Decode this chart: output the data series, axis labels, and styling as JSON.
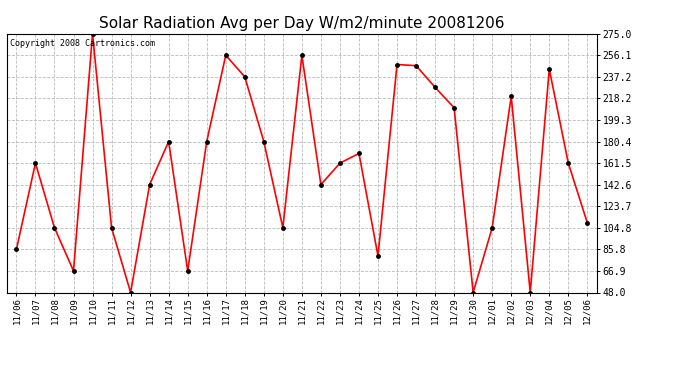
{
  "title": "Solar Radiation Avg per Day W/m2/minute 20081206",
  "copyright": "Copyright 2008 Cartronics.com",
  "x_labels": [
    "11/06",
    "11/07",
    "11/08",
    "11/09",
    "11/10",
    "11/11",
    "11/12",
    "11/13",
    "11/14",
    "11/15",
    "11/16",
    "11/17",
    "11/18",
    "11/19",
    "11/20",
    "11/21",
    "11/22",
    "11/23",
    "11/24",
    "11/25",
    "11/26",
    "11/27",
    "11/28",
    "11/29",
    "11/30",
    "12/01",
    "12/02",
    "12/03",
    "12/04",
    "12/05",
    "12/06"
  ],
  "y_values": [
    85.8,
    161.5,
    104.8,
    66.9,
    275.0,
    104.8,
    48.0,
    142.6,
    180.4,
    66.9,
    180.4,
    256.1,
    237.2,
    180.4,
    104.8,
    256.1,
    142.6,
    161.5,
    170.0,
    80.0,
    248.0,
    247.0,
    228.0,
    210.0,
    48.0,
    104.8,
    220.0,
    48.0,
    244.0,
    161.5,
    109.0
  ],
  "line_color": "#ff0000",
  "marker": "o",
  "marker_size": 2.5,
  "marker_color": "#000000",
  "background_color": "#ffffff",
  "plot_background": "#ffffff",
  "grid_color": "#bbbbbb",
  "title_fontsize": 11,
  "ylim": [
    48.0,
    275.0
  ],
  "yticks": [
    275.0,
    256.1,
    237.2,
    218.2,
    199.3,
    180.4,
    161.5,
    142.6,
    123.7,
    104.8,
    85.8,
    66.9,
    48.0
  ]
}
